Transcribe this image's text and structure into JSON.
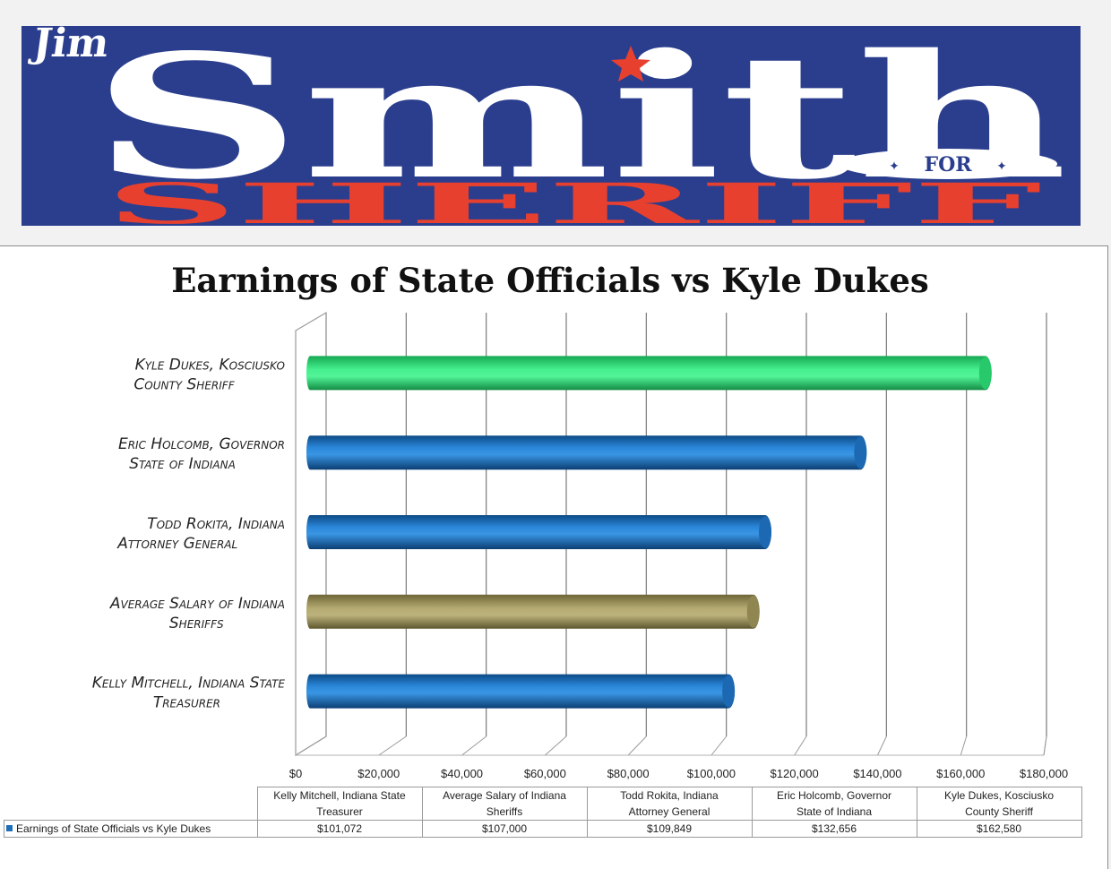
{
  "banner": {
    "first_name": "Jim",
    "last_name": "Smith",
    "for_text": "FOR",
    "office": "SHERIFF",
    "colors": {
      "background": "#2b3e8e",
      "white": "#ffffff",
      "red": "#e8402f"
    }
  },
  "chart_data": {
    "type": "bar",
    "orientation": "horizontal",
    "title": "Earnings of State Officials vs Kyle Dukes",
    "categories": [
      "Kelly Mitchell, Indiana State Treasurer",
      "Average Salary of Indiana Sheriffs",
      "Todd Rokita, Indiana Attorney General",
      "Eric Holcomb, Governor State of Indiana",
      "Kyle Dukes, Kosciusko County Sheriff"
    ],
    "y_tick_labels": [
      [
        "Kelly Mitchell, Indiana State",
        "Treasurer"
      ],
      [
        "Average Salary of Indiana",
        "Sheriffs"
      ],
      [
        "Todd Rokita, Indiana",
        "Attorney General"
      ],
      [
        "Eric Holcomb, Governor",
        "State of Indiana"
      ],
      [
        "Kyle Dukes, Kosciusko",
        "County Sheriff"
      ]
    ],
    "series": [
      {
        "name": "Earnings of State Officials vs Kyle Dukes",
        "values": [
          101072,
          107000,
          109849,
          132656,
          162580
        ],
        "value_labels": [
          "$101,072",
          "$107,000",
          "$109,849",
          "$132,656",
          "$162,580"
        ]
      }
    ],
    "bar_colors": [
      "#1f6fb8",
      "#a39a62",
      "#1f6fb8",
      "#1f6fb8",
      "#2fe07a"
    ],
    "xlim": [
      0,
      180000
    ],
    "x_ticks": [
      0,
      20000,
      40000,
      60000,
      80000,
      100000,
      120000,
      140000,
      160000,
      180000
    ],
    "x_tick_labels": [
      "$0",
      "$20,000",
      "$40,000",
      "$60,000",
      "$80,000",
      "$100,000",
      "$120,000",
      "$140,000",
      "$160,000",
      "$180,000"
    ],
    "grid": true,
    "style": "3d-cylinder",
    "legend": "data-table-below"
  },
  "table": {
    "headers": [
      [
        "Kelly Mitchell, Indiana State",
        "Treasurer"
      ],
      [
        "Average Salary of Indiana",
        "Sheriffs"
      ],
      [
        "Todd Rokita, Indiana",
        "Attorney General"
      ],
      [
        "Eric Holcomb, Governor",
        "State of Indiana"
      ],
      [
        "Kyle Dukes, Kosciusko",
        "County Sheriff"
      ]
    ],
    "legend_label": "Earnings of State Officials vs Kyle Dukes",
    "values": [
      "$101,072",
      "$107,000",
      "$109,849",
      "$132,656",
      "$162,580"
    ]
  }
}
